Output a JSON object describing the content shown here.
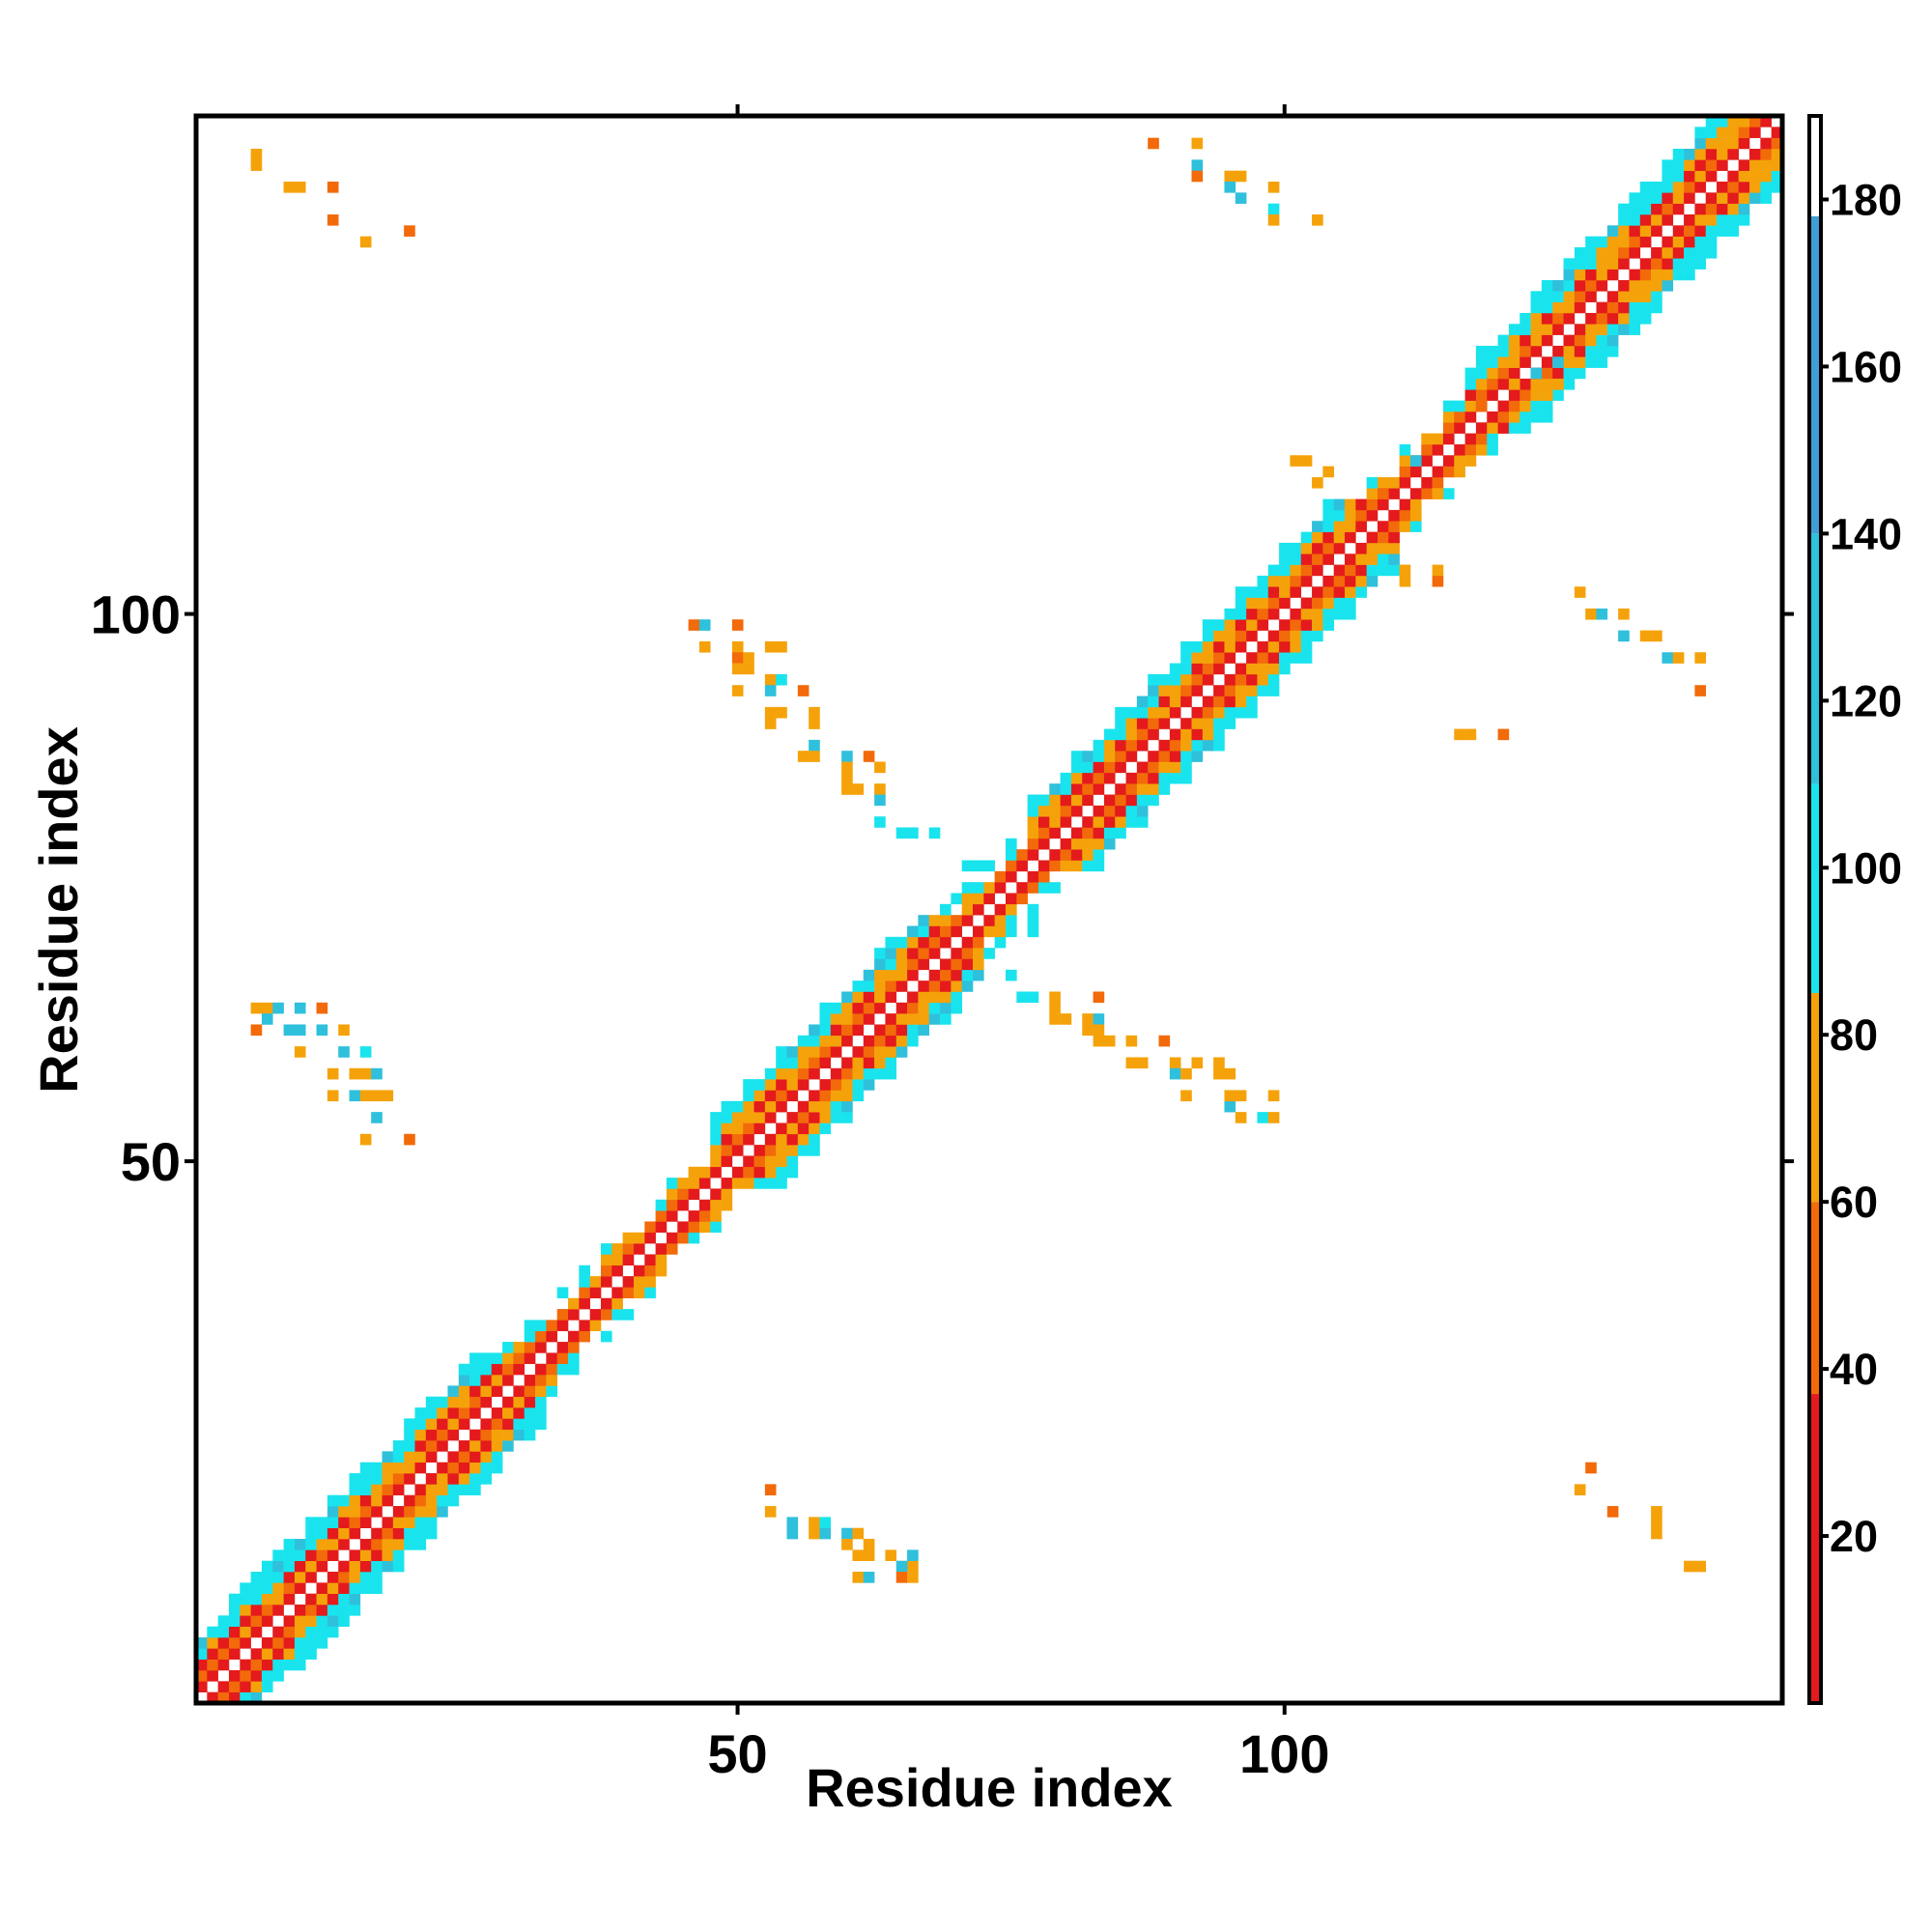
{
  "chart_data": {
    "type": "heatmap",
    "title": "",
    "xlabel": "Residue index",
    "ylabel": "Residue index",
    "xlim": [
      1,
      145
    ],
    "ylim": [
      1,
      145
    ],
    "x_ticks": [
      50,
      100
    ],
    "y_ticks": [
      50,
      100
    ],
    "grid": false,
    "legend": "colorbar-right",
    "colorbar": {
      "range": [
        0,
        190
      ],
      "ticks": [
        20,
        40,
        60,
        80,
        100,
        120,
        140,
        160,
        180
      ],
      "segments": [
        {
          "from": 0,
          "to": 37,
          "color": "#e41a1c"
        },
        {
          "from": 37,
          "to": 60,
          "color": "#f26a0a"
        },
        {
          "from": 60,
          "to": 85,
          "color": "#f5a20a"
        },
        {
          "from": 85,
          "to": 110,
          "color": "#19e4ee"
        },
        {
          "from": 110,
          "to": 140,
          "color": "#2fc0dc"
        },
        {
          "from": 140,
          "to": 178,
          "color": "#3f9fd6"
        },
        {
          "from": 178,
          "to": 190,
          "color": "#ffffff"
        }
      ]
    },
    "off_diagonal_contacts": [
      [
        6,
        142,
        65
      ],
      [
        6,
        141,
        75
      ],
      [
        9,
        139,
        75
      ],
      [
        10,
        139,
        70
      ],
      [
        13,
        139,
        55
      ],
      [
        13,
        136,
        55
      ],
      [
        16,
        134,
        75
      ],
      [
        20,
        135,
        55
      ],
      [
        88,
        143,
        40
      ],
      [
        92,
        143,
        65
      ],
      [
        92,
        141,
        120
      ],
      [
        92,
        140,
        55
      ],
      [
        95,
        140,
        75
      ],
      [
        96,
        140,
        75
      ],
      [
        95,
        139,
        120
      ],
      [
        99,
        139,
        60
      ],
      [
        96,
        138,
        110
      ],
      [
        99,
        137,
        95
      ],
      [
        99,
        136,
        75
      ],
      [
        103,
        136,
        65
      ],
      [
        6,
        64,
        65
      ],
      [
        7,
        64,
        70
      ],
      [
        8,
        64,
        125
      ],
      [
        10,
        64,
        110
      ],
      [
        12,
        64,
        55
      ],
      [
        6,
        62,
        55
      ],
      [
        7,
        63,
        110
      ],
      [
        9,
        62,
        110
      ],
      [
        10,
        62,
        120
      ],
      [
        12,
        62,
        110
      ],
      [
        14,
        62,
        75
      ],
      [
        10,
        60,
        65
      ],
      [
        14,
        60,
        110
      ],
      [
        16,
        60,
        95
      ],
      [
        13,
        58,
        75
      ],
      [
        15,
        58,
        75
      ],
      [
        16,
        58,
        65
      ],
      [
        17,
        58,
        110
      ],
      [
        13,
        56,
        65
      ],
      [
        15,
        56,
        110
      ],
      [
        16,
        56,
        80
      ],
      [
        17,
        56,
        60
      ],
      [
        18,
        56,
        75
      ],
      [
        17,
        54,
        125
      ],
      [
        16,
        52,
        70
      ],
      [
        20,
        52,
        55
      ],
      [
        46,
        99,
        55
      ],
      [
        47,
        99,
        125
      ],
      [
        50,
        99,
        55
      ],
      [
        47,
        97,
        75
      ],
      [
        50,
        97,
        75
      ],
      [
        50,
        96,
        55
      ],
      [
        51,
        96,
        75
      ],
      [
        53,
        97,
        60
      ],
      [
        54,
        97,
        60
      ],
      [
        50,
        95,
        60
      ],
      [
        51,
        95,
        75
      ],
      [
        53,
        94,
        65
      ],
      [
        54,
        94,
        95
      ],
      [
        50,
        93,
        60
      ],
      [
        53,
        93,
        110
      ],
      [
        56,
        93,
        40
      ],
      [
        53,
        91,
        65
      ],
      [
        54,
        91,
        75
      ],
      [
        57,
        91,
        65
      ],
      [
        53,
        90,
        75
      ],
      [
        57,
        90,
        60
      ],
      [
        57,
        88,
        110
      ],
      [
        56,
        87,
        65
      ],
      [
        57,
        87,
        75
      ],
      [
        60,
        87,
        110
      ],
      [
        62,
        87,
        55
      ],
      [
        60,
        86,
        75
      ],
      [
        60,
        85,
        60
      ],
      [
        63,
        86,
        65
      ],
      [
        60,
        84,
        65
      ],
      [
        63,
        84,
        75
      ],
      [
        61,
        84,
        60
      ],
      [
        63,
        83,
        110
      ],
      [
        63,
        81,
        95
      ],
      [
        65,
        80,
        95
      ],
      [
        66,
        80,
        95
      ],
      [
        68,
        80,
        95
      ],
      [
        75,
        67,
        95
      ],
      [
        76,
        65,
        95
      ],
      [
        77,
        65,
        95
      ],
      [
        79,
        65,
        75
      ],
      [
        79,
        64,
        60
      ],
      [
        83,
        65,
        55
      ],
      [
        79,
        63,
        60
      ],
      [
        80,
        63,
        70
      ],
      [
        82,
        63,
        75
      ],
      [
        83,
        63,
        110
      ],
      [
        82,
        62,
        60
      ],
      [
        83,
        62,
        60
      ],
      [
        83,
        61,
        75
      ],
      [
        84,
        61,
        70
      ],
      [
        86,
        61,
        75
      ],
      [
        89,
        61,
        40
      ],
      [
        86,
        59,
        70
      ],
      [
        87,
        59,
        60
      ],
      [
        90,
        59,
        60
      ],
      [
        90,
        58,
        110
      ],
      [
        92,
        59,
        75
      ],
      [
        94,
        59,
        60
      ],
      [
        91,
        58,
        65
      ],
      [
        94,
        58,
        60
      ],
      [
        95,
        58,
        75
      ],
      [
        91,
        56,
        75
      ],
      [
        96,
        56,
        60
      ],
      [
        95,
        55,
        120
      ],
      [
        95,
        56,
        65
      ],
      [
        99,
        56,
        60
      ],
      [
        96,
        54,
        70
      ],
      [
        98,
        54,
        95
      ],
      [
        99,
        54,
        80
      ],
      [
        53,
        20,
        55
      ],
      [
        53,
        18,
        75
      ],
      [
        55,
        17,
        120
      ],
      [
        57,
        17,
        75
      ],
      [
        58,
        17,
        95
      ],
      [
        55,
        16,
        110
      ],
      [
        57,
        16,
        60
      ],
      [
        58,
        16,
        110
      ],
      [
        60,
        16,
        110
      ],
      [
        61,
        16,
        75
      ],
      [
        60,
        15,
        65
      ],
      [
        62,
        15,
        75
      ],
      [
        61,
        14,
        60
      ],
      [
        62,
        14,
        75
      ],
      [
        64,
        14,
        60
      ],
      [
        66,
        13,
        75
      ],
      [
        66,
        14,
        120
      ],
      [
        65,
        13,
        120
      ],
      [
        61,
        12,
        75
      ],
      [
        62,
        12,
        120
      ],
      [
        65,
        12,
        55
      ],
      [
        66,
        12,
        75
      ],
      [
        128,
        22,
        55
      ],
      [
        127,
        20,
        75
      ],
      [
        130,
        18,
        55
      ],
      [
        134,
        18,
        60
      ],
      [
        134,
        17,
        75
      ],
      [
        134,
        16,
        75
      ],
      [
        137,
        13,
        75
      ],
      [
        138,
        13,
        65
      ],
      [
        112,
        114,
        125
      ],
      [
        117,
        114,
        75
      ],
      [
        109,
        111,
        55
      ],
      [
        114,
        111,
        75
      ],
      [
        124,
        120,
        75
      ],
      [
        118,
        119,
        55
      ],
      [
        121,
        121,
        60
      ],
      [
        123,
        122,
        125
      ],
      [
        125,
        123,
        125
      ],
      [
        125,
        121,
        70
      ],
      [
        116,
        89,
        75
      ],
      [
        117,
        89,
        60
      ],
      [
        120,
        89,
        55
      ],
      [
        127,
        102,
        75
      ],
      [
        128,
        100,
        75
      ],
      [
        129,
        100,
        120
      ],
      [
        131,
        100,
        60
      ],
      [
        131,
        98,
        120
      ],
      [
        133,
        98,
        75
      ],
      [
        134,
        98,
        75
      ],
      [
        135,
        96,
        120
      ],
      [
        136,
        96,
        75
      ],
      [
        138,
        96,
        60
      ],
      [
        138,
        93,
        40
      ],
      [
        111,
        104,
        60
      ],
      [
        111,
        103,
        75
      ],
      [
        114,
        103,
        55
      ],
      [
        114,
        104,
        75
      ],
      [
        101,
        114,
        60
      ],
      [
        102,
        114,
        75
      ],
      [
        104,
        113,
        75
      ],
      [
        103,
        112,
        65
      ]
    ]
  }
}
